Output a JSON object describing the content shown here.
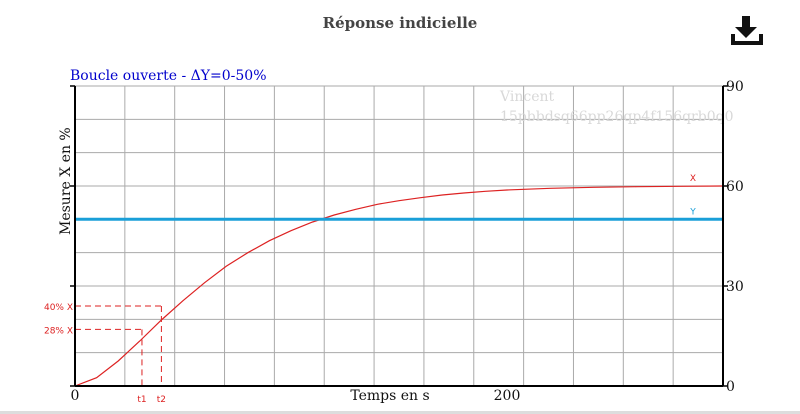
{
  "header": {
    "title": "Réponse indicielle",
    "download_icon": "download-icon"
  },
  "chart_data": {
    "type": "line",
    "title": "Boucle ouverte - ΔY=0-50%",
    "xlabel": "Temps en s",
    "ylabel": "Mesure X en %",
    "xlim": [
      0,
      300
    ],
    "ylim": [
      0,
      90
    ],
    "x_ticks": [
      0,
      200
    ],
    "y_ticks": [
      0,
      30,
      60,
      90
    ],
    "grid": true,
    "watermark": {
      "line1": "Vincent",
      "line2": "15pbbdsq66pp26qp4f156qrb0q0"
    },
    "series": [
      {
        "name": "X",
        "color": "#dd2222",
        "x": [
          0,
          10,
          20,
          30,
          40,
          50,
          60,
          70,
          80,
          90,
          100,
          110,
          120,
          130,
          140,
          150,
          160,
          170,
          180,
          190,
          200,
          220,
          240,
          260,
          280,
          300
        ],
        "y": [
          0,
          2.5,
          7.5,
          13.5,
          19.8,
          25.6,
          31.0,
          35.9,
          40.0,
          43.6,
          46.6,
          49.2,
          51.3,
          53.0,
          54.5,
          55.6,
          56.5,
          57.3,
          57.9,
          58.4,
          58.8,
          59.3,
          59.6,
          59.8,
          59.9,
          60.0
        ]
      },
      {
        "name": "Y",
        "color": "#1a9fd8",
        "x": [
          0,
          300
        ],
        "y": [
          50,
          50
        ]
      }
    ],
    "annotations": [
      {
        "label": "40% X",
        "y": 24,
        "t_label": "t2",
        "t": 40
      },
      {
        "label": "28% X",
        "y": 17,
        "t_label": "t1",
        "t": 31
      }
    ]
  }
}
